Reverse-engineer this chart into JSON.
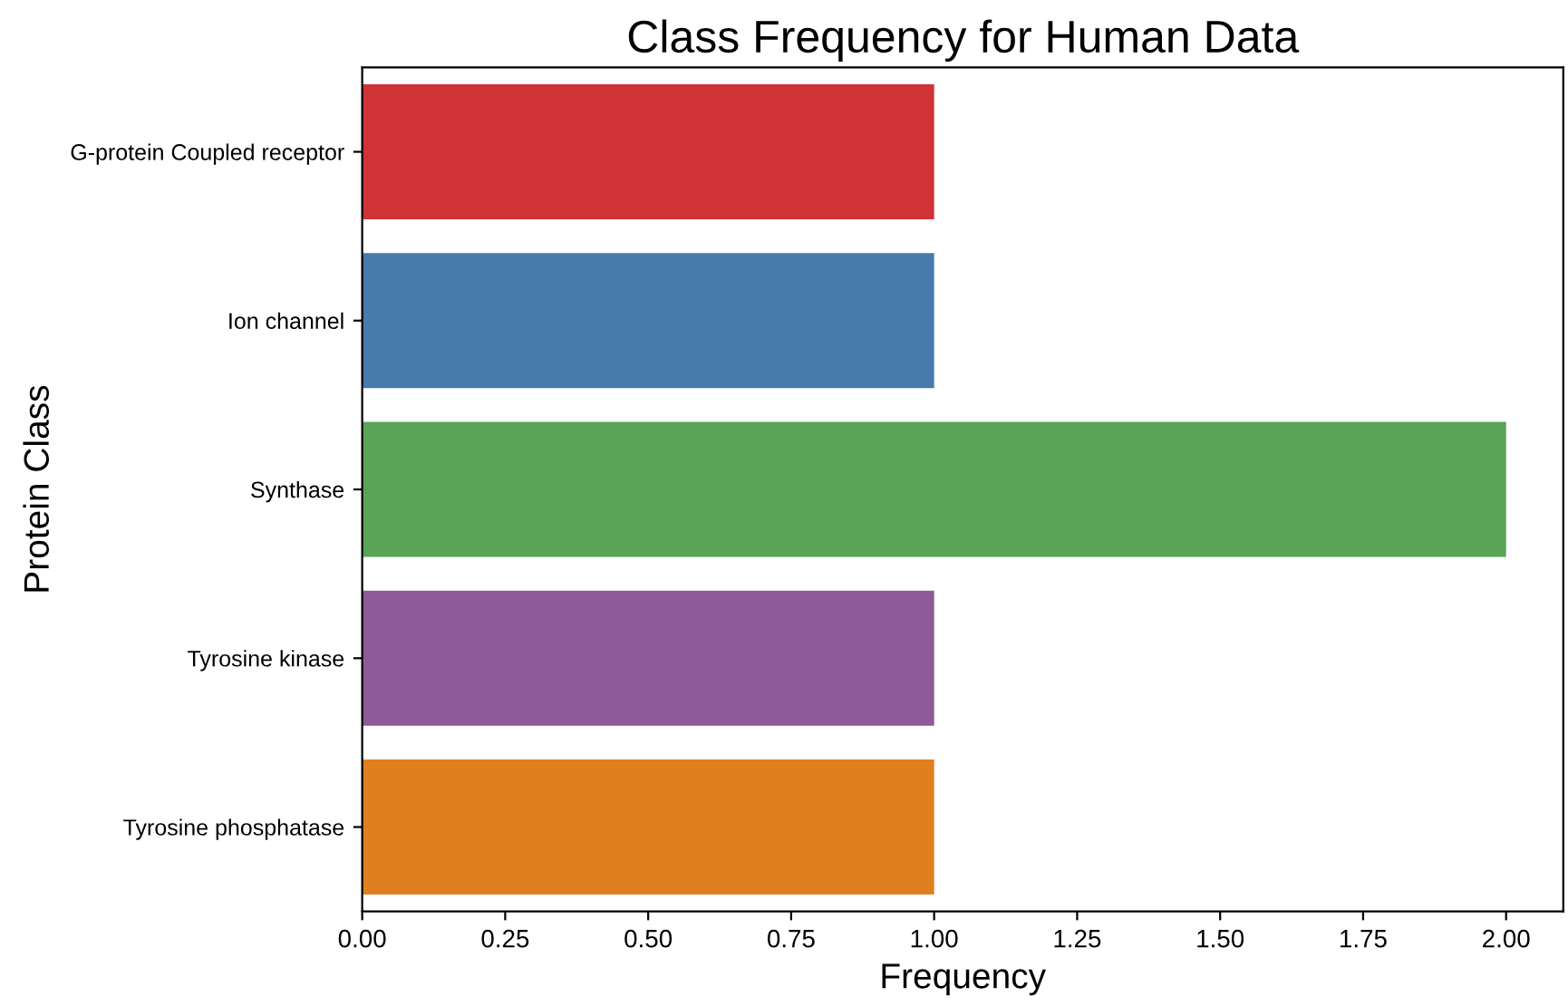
{
  "chart_data": {
    "type": "bar",
    "orientation": "horizontal",
    "title": "Class Frequency for Human Data",
    "xlabel": "Frequency",
    "ylabel": "Protein Class",
    "categories": [
      "G-protein Coupled receptor",
      "Ion channel",
      "Synthase",
      "Tyrosine kinase",
      "Tyrosine phosphatase"
    ],
    "values": [
      1,
      1,
      2,
      1,
      1
    ],
    "colors": [
      "#cf3336",
      "#467bab",
      "#5aa457",
      "#8e5a99",
      "#e07f1f"
    ],
    "xlim": [
      0,
      2.1
    ],
    "xticks": [
      {
        "value": 0,
        "label": "0.00"
      },
      {
        "value": 0.25,
        "label": "0.25"
      },
      {
        "value": 0.5,
        "label": "0.50"
      },
      {
        "value": 0.75,
        "label": "0.75"
      },
      {
        "value": 1,
        "label": "1.00"
      },
      {
        "value": 1.25,
        "label": "1.25"
      },
      {
        "value": 1.5,
        "label": "1.50"
      },
      {
        "value": 1.75,
        "label": "1.75"
      },
      {
        "value": 2,
        "label": "2.00"
      }
    ],
    "grid": false,
    "legend": false
  }
}
